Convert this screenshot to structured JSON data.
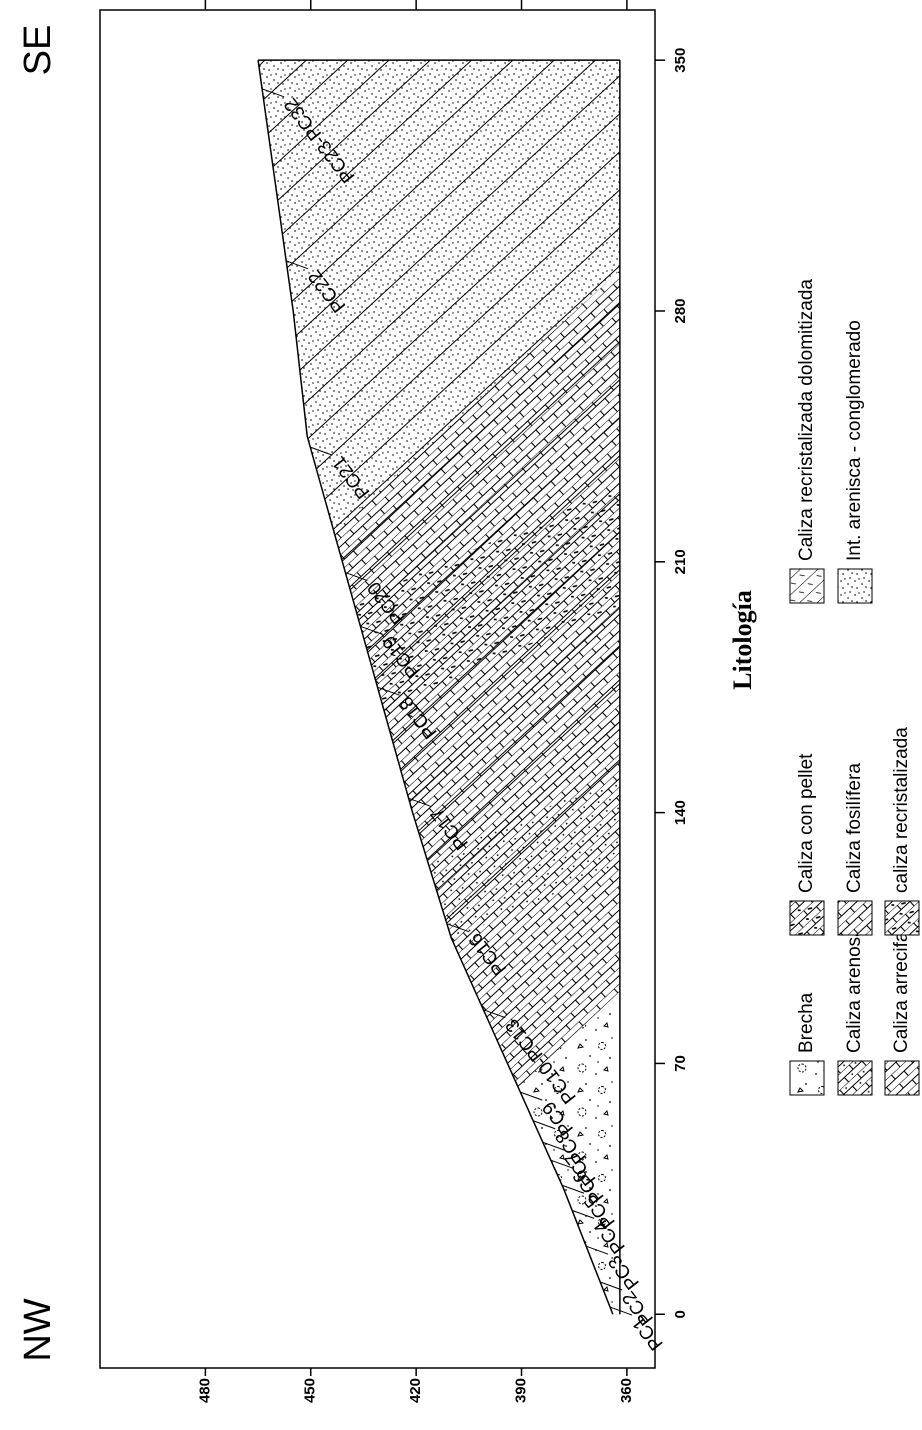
{
  "chart_data": {
    "type": "section",
    "left_label": "NW",
    "right_label": "SE",
    "x": [
      0,
      35,
      70,
      105,
      140,
      175,
      210,
      245,
      280,
      315,
      350
    ],
    "values": [
      364,
      378,
      394,
      410,
      421,
      431,
      441,
      451,
      455,
      460,
      465
    ],
    "base": 362,
    "xlim": [
      -15,
      364
    ],
    "ylim": [
      352,
      510
    ],
    "xticks": [
      0,
      70,
      140,
      210,
      280,
      350
    ],
    "yticks": [
      360,
      390,
      420,
      450,
      480
    ],
    "stations": [
      {
        "label": "PC1",
        "distance": 2
      },
      {
        "label": "PC2",
        "distance": 9
      },
      {
        "label": "PC3",
        "distance": 19
      },
      {
        "label": "PC4",
        "distance": 29
      },
      {
        "label": "PC5",
        "distance": 36
      },
      {
        "label": "PC6",
        "distance": 43
      },
      {
        "label": "PC7",
        "distance": 48
      },
      {
        "label": "PC8",
        "distance": 54
      },
      {
        "label": "PC9",
        "distance": 62
      },
      {
        "label": "PC10-PC13",
        "distance": 85
      },
      {
        "label": "PC16",
        "distance": 109
      },
      {
        "label": "PC17",
        "distance": 144
      },
      {
        "label": "PC18",
        "distance": 175
      },
      {
        "label": "PC19",
        "distance": 192
      },
      {
        "label": "PC20",
        "distance": 207
      },
      {
        "label": "PC21",
        "distance": 242
      },
      {
        "label": "PC22",
        "distance": 294
      },
      {
        "label": "PC23-PC32",
        "distance": 342
      }
    ],
    "legend": {
      "title": "Litología",
      "items": [
        "Brecha",
        "Caliza arenosa",
        "Caliza arrecifal",
        "Caliza con pellet",
        "Caliza fosilífera",
        "caliza recristalizada",
        "Caliza recristalizada dolomitizada",
        "Int. arenisca - conglomerado"
      ]
    }
  }
}
